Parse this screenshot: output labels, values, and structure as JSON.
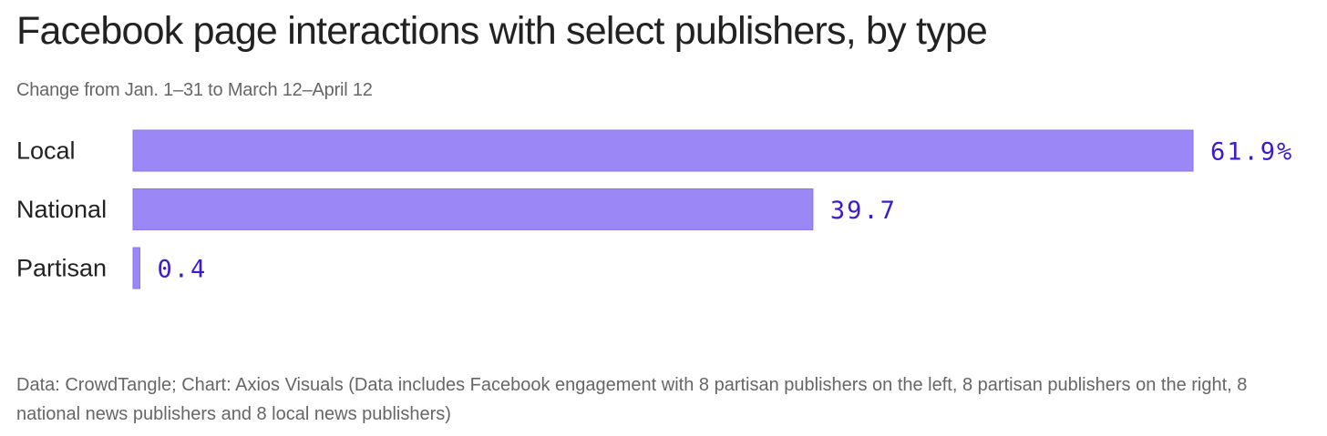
{
  "header": {
    "title": "Facebook page interactions with select publishers, by type",
    "subtitle": "Change from Jan. 1–31 to March 12–April 12"
  },
  "footer": {
    "note": "Data: CrowdTangle; Chart: Axios Visuals (Data includes Facebook engagement with 8 partisan publishers on the left, 8 partisan publishers on the right, 8 national news publishers and 8 local news publishers)"
  },
  "colors": {
    "bar": "#9b87f5",
    "bar_stroke": "#8a74f0",
    "value_text": "#3b1ad0"
  },
  "chart_data": {
    "type": "bar",
    "orientation": "horizontal",
    "categories": [
      "Local",
      "National",
      "Partisan"
    ],
    "values": [
      61.9,
      39.7,
      0.4
    ],
    "value_labels": [
      "61.9%",
      "39.7",
      "0.4"
    ],
    "title": "Facebook page interactions with select publishers, by type",
    "subtitle": "Change from Jan. 1–31 to March 12–April 12",
    "xlim": [
      0,
      61.9
    ],
    "grid": false,
    "legend": "none"
  }
}
